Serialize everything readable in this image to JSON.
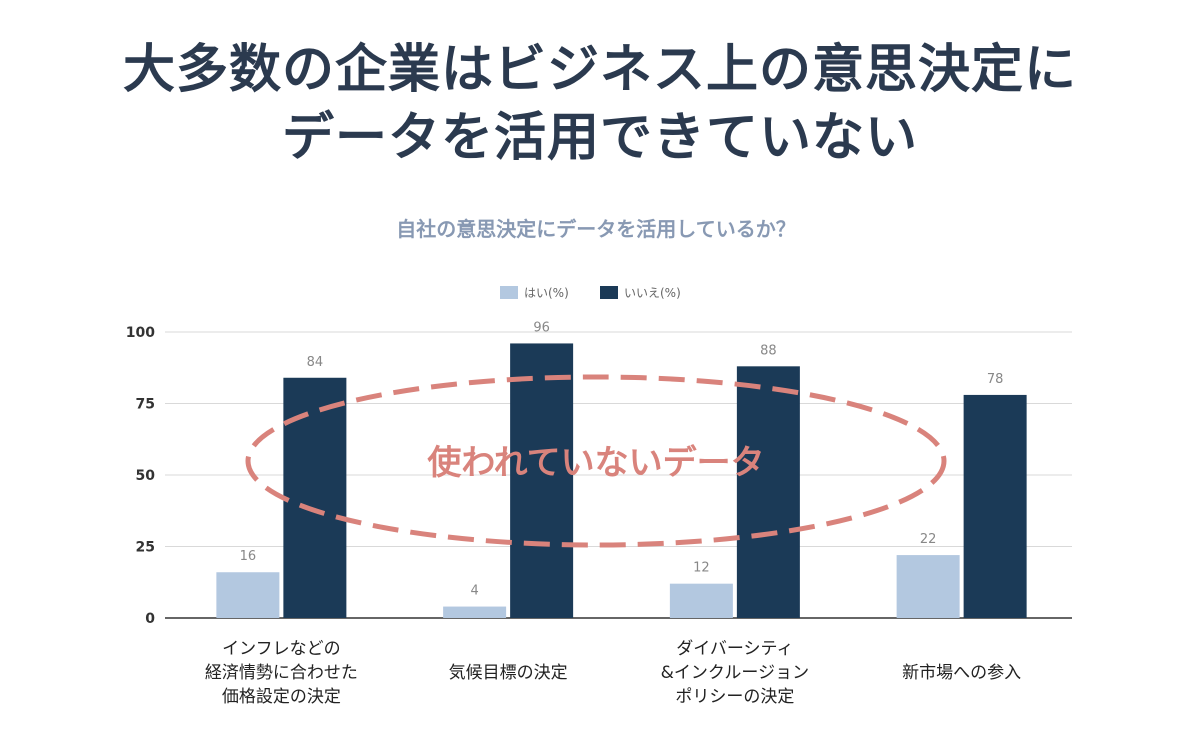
{
  "headline": {
    "line1": "大多数の企業はビジネス上の意思決定に",
    "line2": "データを活用できていない"
  },
  "chart_data": {
    "type": "bar",
    "title": "自社の意思決定にデータを活用しているか？",
    "categories": [
      [
        "インフレなどの",
        "経済情勢に合わせた",
        "価格設定の決定"
      ],
      [
        "気候目標の決定"
      ],
      [
        "ダイバーシティ",
        "&インクルージョン",
        "ポリシーの決定"
      ],
      [
        "新市場への参入"
      ]
    ],
    "series": [
      {
        "name": "はい(%)",
        "values": [
          16,
          4,
          12,
          22
        ],
        "color": "#b3c8e0"
      },
      {
        "name": "いいえ(%)",
        "values": [
          84,
          96,
          88,
          78
        ],
        "color": "#1b3a57"
      }
    ],
    "yticks": [
      0,
      25,
      50,
      75,
      100
    ],
    "ylim": [
      0,
      100
    ],
    "grid": true,
    "legend": "top-center",
    "annotation": {
      "text": "使われていないデータ",
      "color": "#d9837c"
    }
  }
}
